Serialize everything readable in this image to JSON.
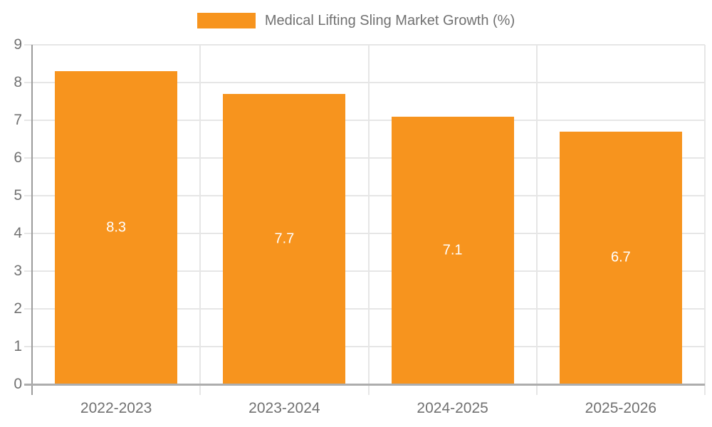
{
  "chart_data": {
    "type": "bar",
    "title": "Medical Lifting Sling Market Growth (%)",
    "categories": [
      "2022-2023",
      "2023-2024",
      "2024-2025",
      "2025-2026"
    ],
    "values": [
      8.3,
      7.7,
      7.1,
      6.7
    ],
    "value_labels": [
      "8.3",
      "7.7",
      "7.1",
      "6.7"
    ],
    "yticks": [
      0,
      1,
      2,
      3,
      4,
      5,
      6,
      7,
      8,
      9
    ],
    "ylim": [
      0,
      9
    ],
    "xlabel": "",
    "ylabel": "",
    "grid": true,
    "legend_position": "top-center",
    "colors": {
      "bar": "#F7941E",
      "value_label": "#FFFFFF",
      "axis_text": "#717171",
      "gridline": "#E6E6E6",
      "baseline": "#ADADAD",
      "yaxis_line": "#9B9B9B",
      "background": "#FFFFFF"
    }
  }
}
